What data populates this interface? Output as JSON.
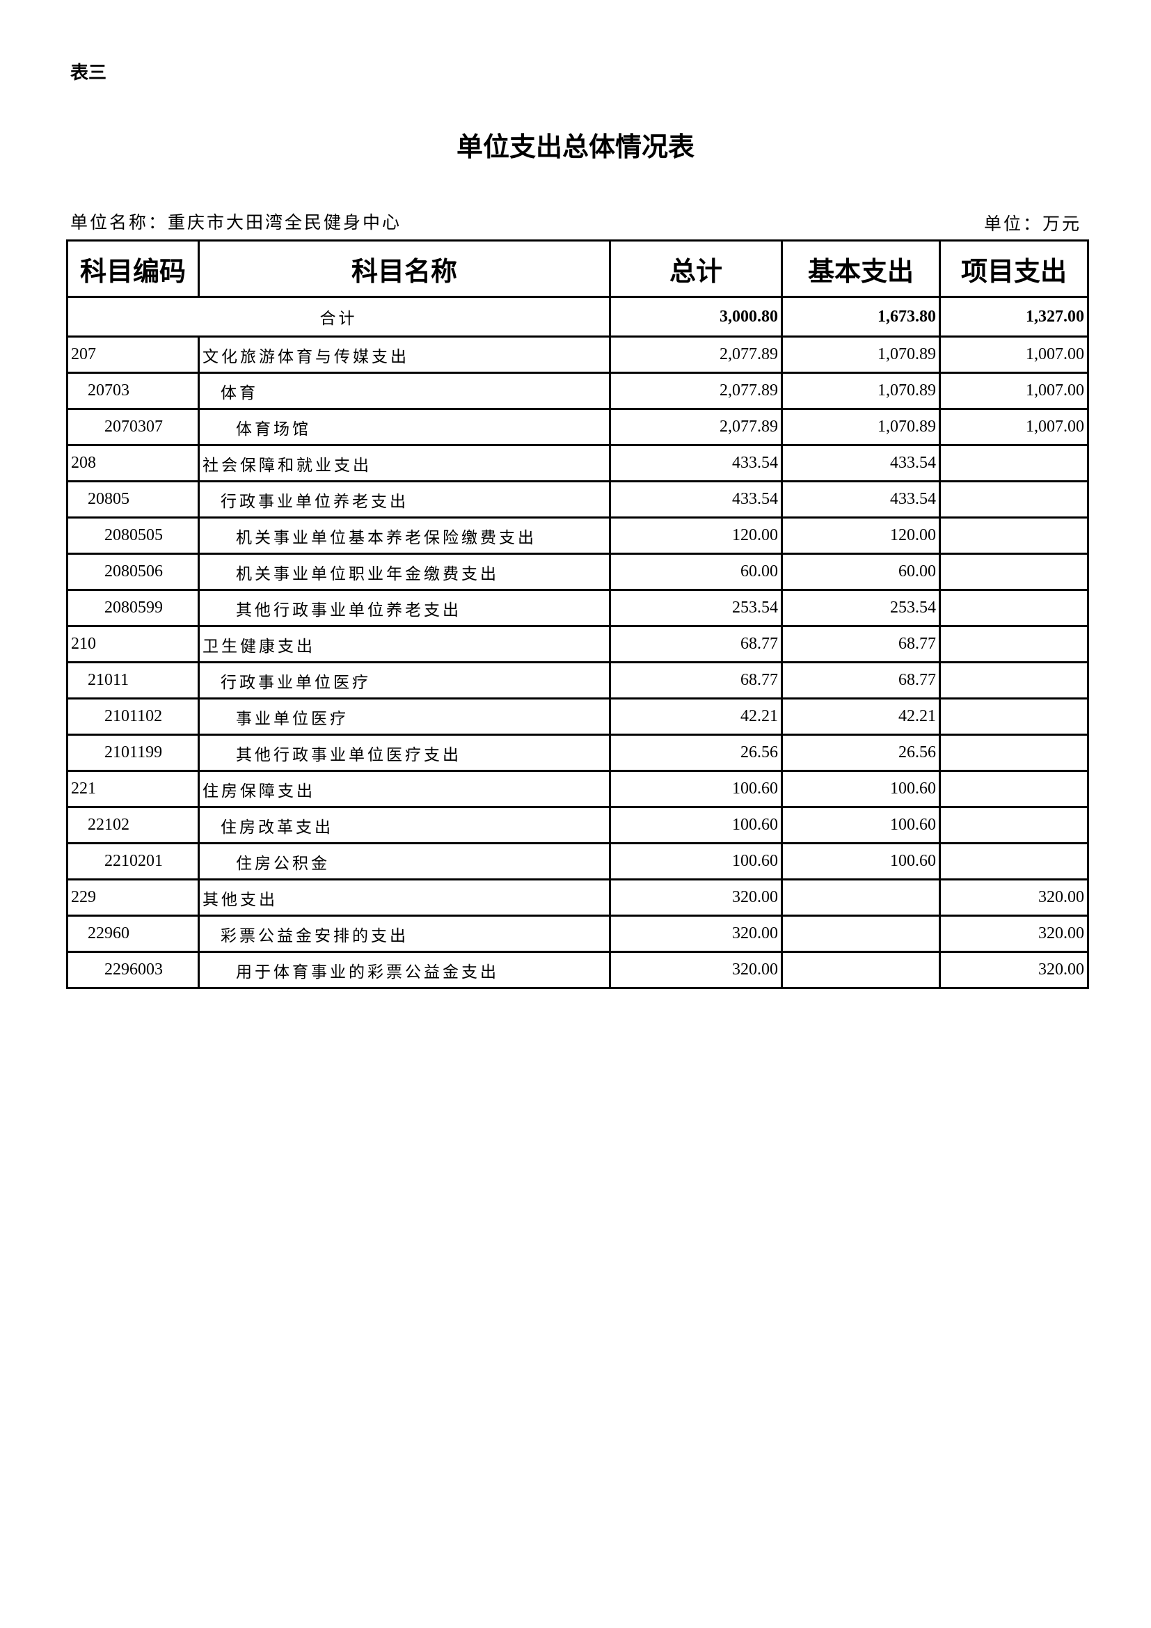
{
  "label": "表三",
  "title": "单位支出总体情况表",
  "unit_name": "单位名称：重庆市大田湾全民健身中心",
  "unit": "单位：万元",
  "headers": [
    "科目编码",
    "科目名称",
    "总计",
    "基本支出",
    "项目支出"
  ],
  "total": {
    "label": "合计",
    "total": "3,000.80",
    "basic": "1,673.80",
    "project": "1,327.00"
  },
  "rows": [
    {
      "code": "207",
      "name": "文化旅游体育与传媒支出",
      "level": 0,
      "total": "2,077.89",
      "basic": "1,070.89",
      "project": "1,007.00"
    },
    {
      "code": "20703",
      "name": "体育",
      "level": 1,
      "total": "2,077.89",
      "basic": "1,070.89",
      "project": "1,007.00"
    },
    {
      "code": "2070307",
      "name": "体育场馆",
      "level": 2,
      "total": "2,077.89",
      "basic": "1,070.89",
      "project": "1,007.00"
    },
    {
      "code": "208",
      "name": "社会保障和就业支出",
      "level": 0,
      "total": "433.54",
      "basic": "433.54",
      "project": ""
    },
    {
      "code": "20805",
      "name": "行政事业单位养老支出",
      "level": 1,
      "total": "433.54",
      "basic": "433.54",
      "project": ""
    },
    {
      "code": "2080505",
      "name": "机关事业单位基本养老保险缴费支出",
      "level": 2,
      "total": "120.00",
      "basic": "120.00",
      "project": ""
    },
    {
      "code": "2080506",
      "name": "机关事业单位职业年金缴费支出",
      "level": 2,
      "total": "60.00",
      "basic": "60.00",
      "project": ""
    },
    {
      "code": "2080599",
      "name": "其他行政事业单位养老支出",
      "level": 2,
      "total": "253.54",
      "basic": "253.54",
      "project": ""
    },
    {
      "code": "210",
      "name": "卫生健康支出",
      "level": 0,
      "total": "68.77",
      "basic": "68.77",
      "project": ""
    },
    {
      "code": "21011",
      "name": "行政事业单位医疗",
      "level": 1,
      "total": "68.77",
      "basic": "68.77",
      "project": ""
    },
    {
      "code": "2101102",
      "name": "事业单位医疗",
      "level": 2,
      "total": "42.21",
      "basic": "42.21",
      "project": ""
    },
    {
      "code": "2101199",
      "name": "其他行政事业单位医疗支出",
      "level": 2,
      "total": "26.56",
      "basic": "26.56",
      "project": ""
    },
    {
      "code": "221",
      "name": "住房保障支出",
      "level": 0,
      "total": "100.60",
      "basic": "100.60",
      "project": ""
    },
    {
      "code": "22102",
      "name": "住房改革支出",
      "level": 1,
      "total": "100.60",
      "basic": "100.60",
      "project": ""
    },
    {
      "code": "2210201",
      "name": "住房公积金",
      "level": 2,
      "total": "100.60",
      "basic": "100.60",
      "project": ""
    },
    {
      "code": "229",
      "name": "其他支出",
      "level": 0,
      "total": "320.00",
      "basic": "",
      "project": "320.00"
    },
    {
      "code": "22960",
      "name": "彩票公益金安排的支出",
      "level": 1,
      "total": "320.00",
      "basic": "",
      "project": "320.00"
    },
    {
      "code": "2296003",
      "name": "用于体育事业的彩票公益金支出",
      "level": 2,
      "total": "320.00",
      "basic": "",
      "project": "320.00"
    }
  ]
}
